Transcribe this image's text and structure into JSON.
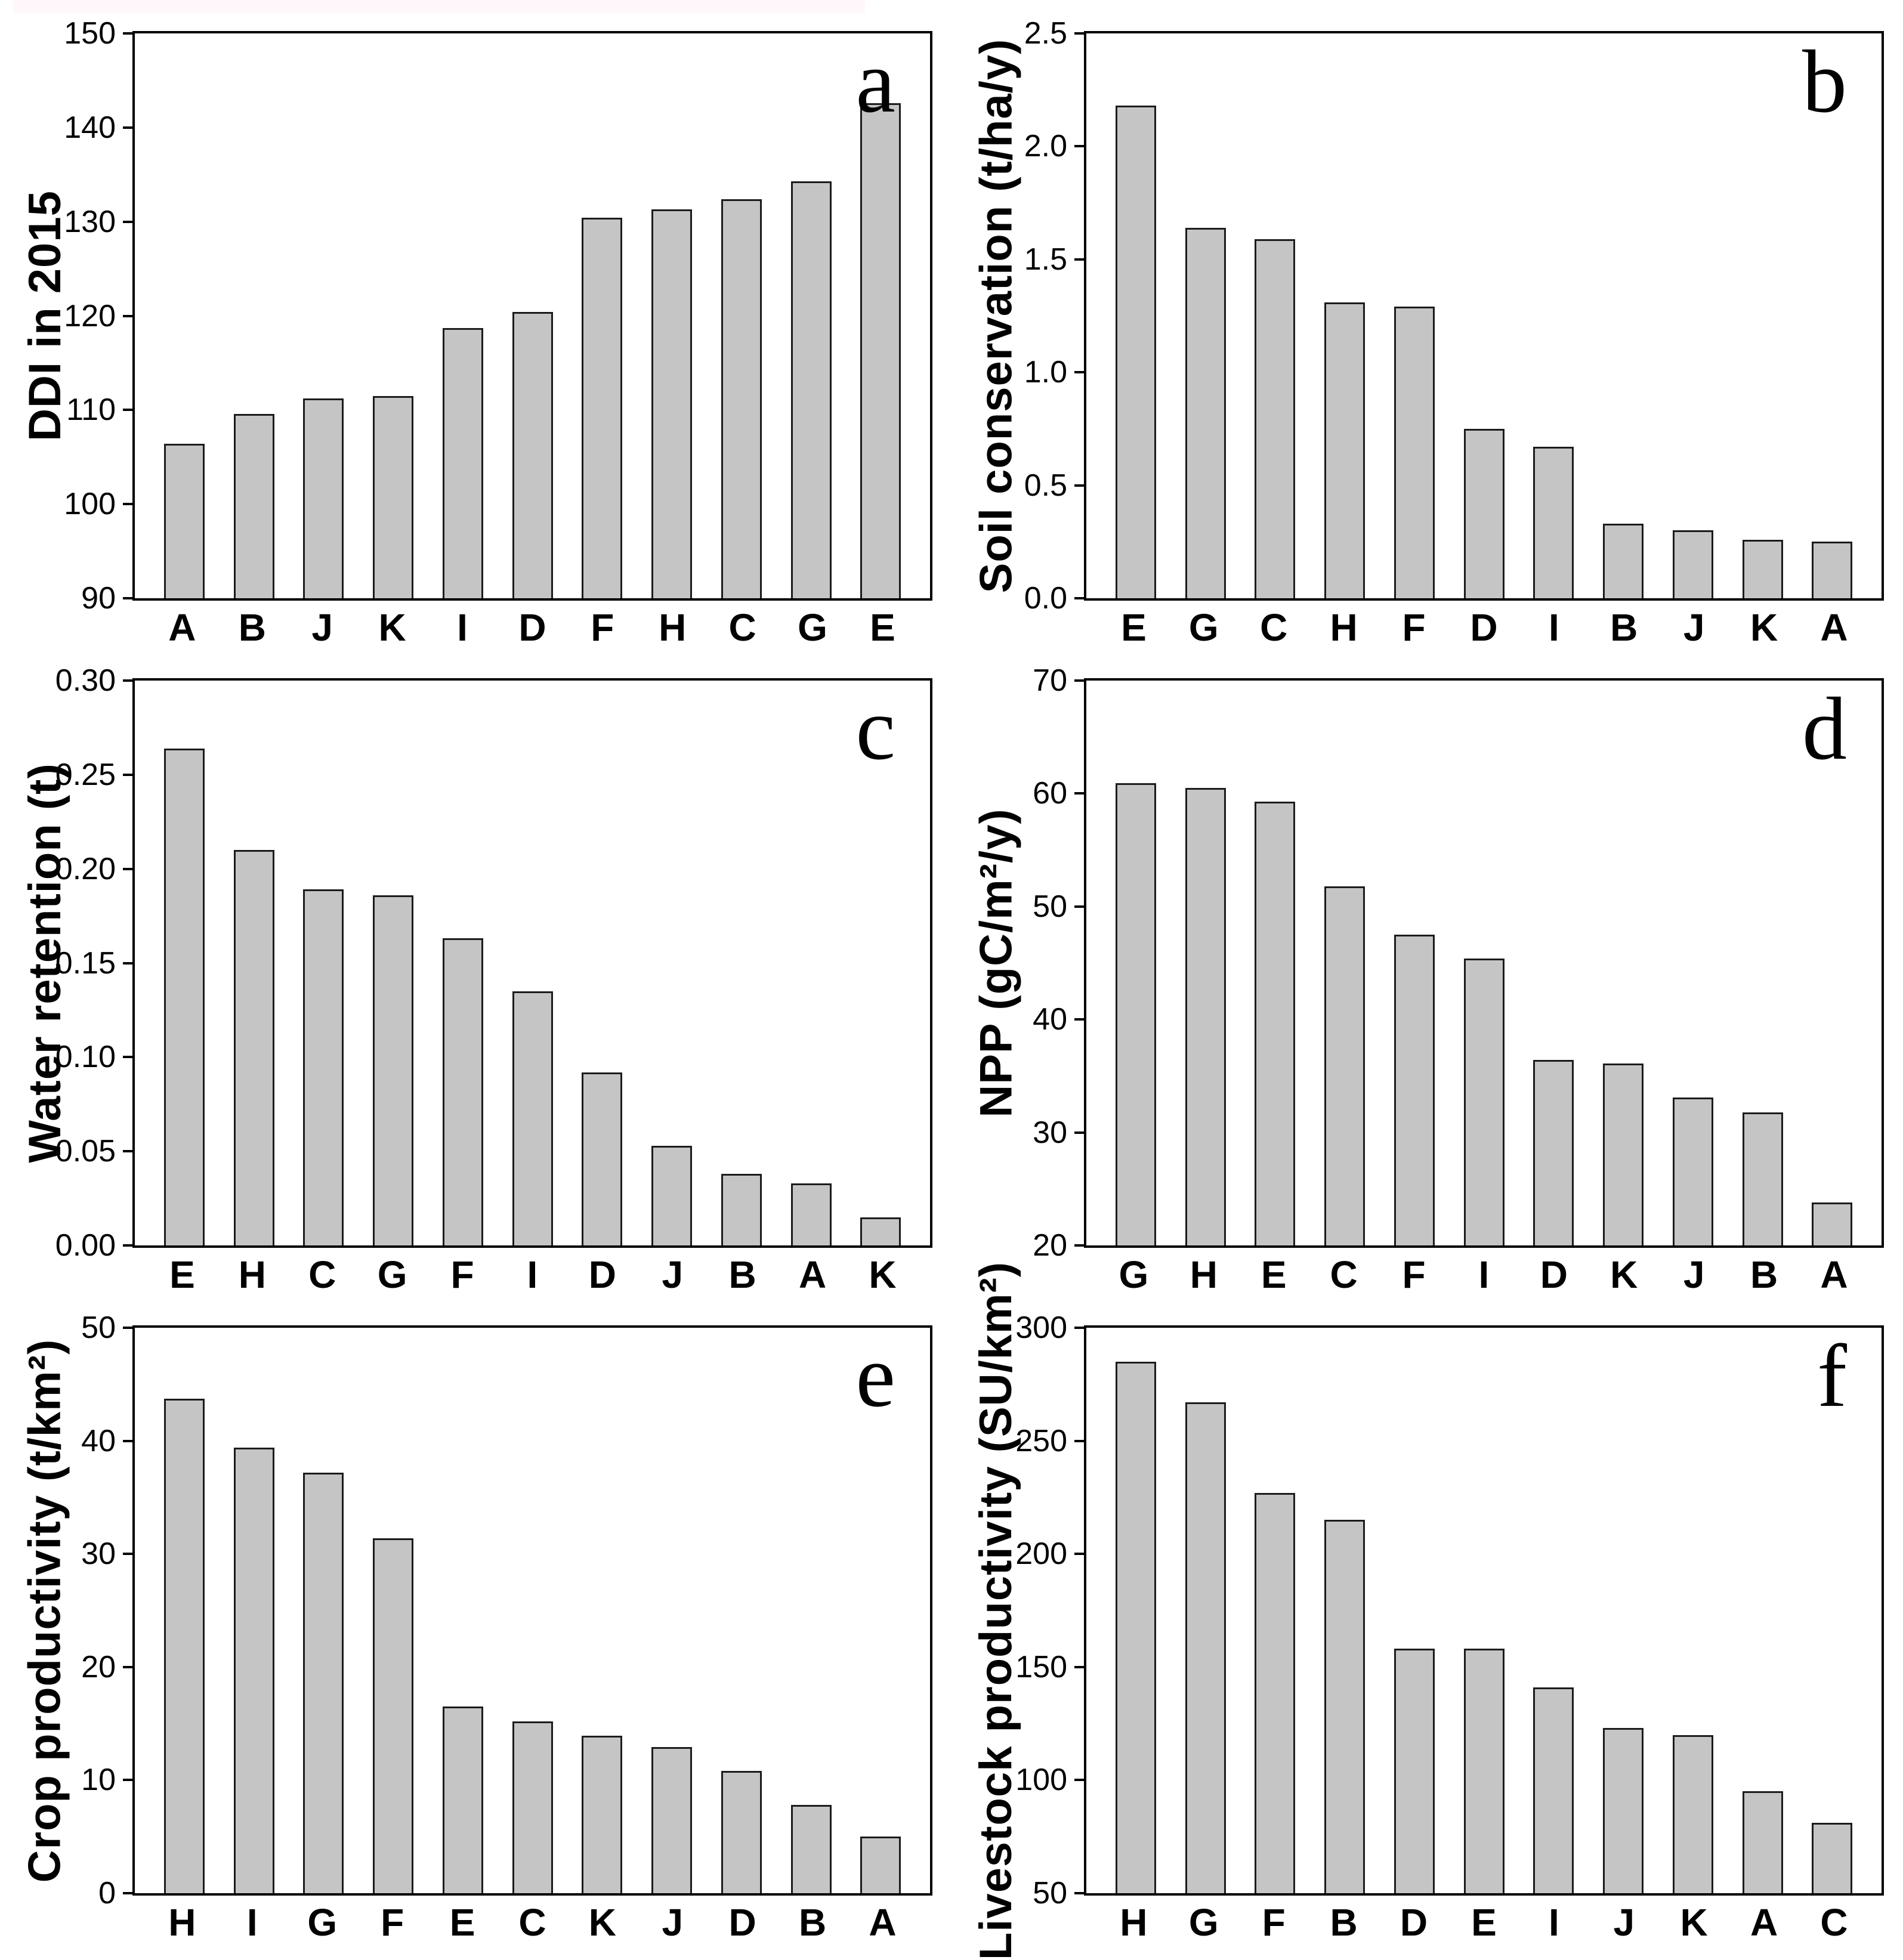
{
  "colors": {
    "bar_fill": "#c5c5c5",
    "bar_border": "#1c1c1c",
    "axis": "#000000",
    "top_strip": "#fff7fa"
  },
  "chart_data": [
    {
      "type": "bar",
      "panel": "a",
      "ylabel": "DDI in 2015",
      "categories": [
        "A",
        "B",
        "J",
        "K",
        "I",
        "D",
        "F",
        "H",
        "C",
        "G",
        "E"
      ],
      "values": [
        106.4,
        109.6,
        111.2,
        111.5,
        118.7,
        120.4,
        130.4,
        131.3,
        132.4,
        134.3,
        142.6
      ],
      "ylim": [
        90,
        150
      ],
      "ytick_values": [
        90,
        100,
        110,
        120,
        130,
        140,
        150
      ],
      "ytick_labels": [
        "90",
        "100",
        "110",
        "120",
        "130",
        "140",
        "150"
      ],
      "grid": "off",
      "legend": "none"
    },
    {
      "type": "bar",
      "panel": "b",
      "ylabel": "Soil conservation (t/ha/y)",
      "categories": [
        "E",
        "G",
        "C",
        "H",
        "F",
        "D",
        "I",
        "B",
        "J",
        "K",
        "A"
      ],
      "values": [
        2.18,
        1.64,
        1.59,
        1.31,
        1.29,
        0.75,
        0.67,
        0.33,
        0.3,
        0.26,
        0.25
      ],
      "ylim": [
        0.0,
        2.5
      ],
      "ytick_values": [
        0.0,
        0.5,
        1.0,
        1.5,
        2.0,
        2.5
      ],
      "ytick_labels": [
        "0.0",
        "0.5",
        "1.0",
        "1.5",
        "2.0",
        "2.5"
      ],
      "grid": "off",
      "legend": "none"
    },
    {
      "type": "bar",
      "panel": "c",
      "ylabel": "Water retention (t)",
      "categories": [
        "E",
        "H",
        "C",
        "G",
        "F",
        "I",
        "D",
        "J",
        "B",
        "A",
        "K"
      ],
      "values": [
        0.264,
        0.21,
        0.189,
        0.186,
        0.163,
        0.135,
        0.092,
        0.053,
        0.038,
        0.033,
        0.015
      ],
      "ylim": [
        0.0,
        0.3
      ],
      "ytick_values": [
        0.0,
        0.05,
        0.1,
        0.15,
        0.2,
        0.25,
        0.3
      ],
      "ytick_labels": [
        "0.00",
        "0.05",
        "0.10",
        "0.15",
        "0.20",
        "0.25",
        "0.30"
      ],
      "grid": "off",
      "legend": "none"
    },
    {
      "type": "bar",
      "panel": "d",
      "ylabel": "NPP (gC/m²/y)",
      "categories": [
        "G",
        "H",
        "E",
        "C",
        "F",
        "I",
        "D",
        "K",
        "J",
        "B",
        "A"
      ],
      "values": [
        60.9,
        60.5,
        59.3,
        51.8,
        47.5,
        45.4,
        36.4,
        36.1,
        33.1,
        31.8,
        23.8
      ],
      "ylim": [
        20,
        70
      ],
      "ytick_values": [
        20,
        30,
        40,
        50,
        60,
        70
      ],
      "ytick_labels": [
        "20",
        "30",
        "40",
        "50",
        "60",
        "70"
      ],
      "grid": "off",
      "legend": "none"
    },
    {
      "type": "bar",
      "panel": "e",
      "ylabel": "Crop productivity (t/km²)",
      "categories": [
        "H",
        "I",
        "G",
        "F",
        "E",
        "C",
        "K",
        "J",
        "D",
        "B",
        "A"
      ],
      "values": [
        43.7,
        39.4,
        37.2,
        31.4,
        16.5,
        15.2,
        13.9,
        12.9,
        10.8,
        7.8,
        5.0
      ],
      "ylim": [
        0,
        50
      ],
      "ytick_values": [
        0,
        10,
        20,
        30,
        40,
        50
      ],
      "ytick_labels": [
        "0",
        "10",
        "20",
        "30",
        "40",
        "50"
      ],
      "grid": "off",
      "legend": "none"
    },
    {
      "type": "bar",
      "panel": "f",
      "ylabel": "Livestock productivity (SU/km²)",
      "categories": [
        "H",
        "G",
        "F",
        "B",
        "D",
        "E",
        "I",
        "J",
        "K",
        "A",
        "C"
      ],
      "values": [
        285,
        267,
        227,
        215,
        158,
        158,
        141,
        123,
        120,
        95,
        81
      ],
      "ylim": [
        50,
        300
      ],
      "ytick_values": [
        50,
        100,
        150,
        200,
        250,
        300
      ],
      "ytick_labels": [
        "50",
        "100",
        "150",
        "200",
        "250",
        "300"
      ],
      "grid": "off",
      "legend": "none"
    }
  ]
}
